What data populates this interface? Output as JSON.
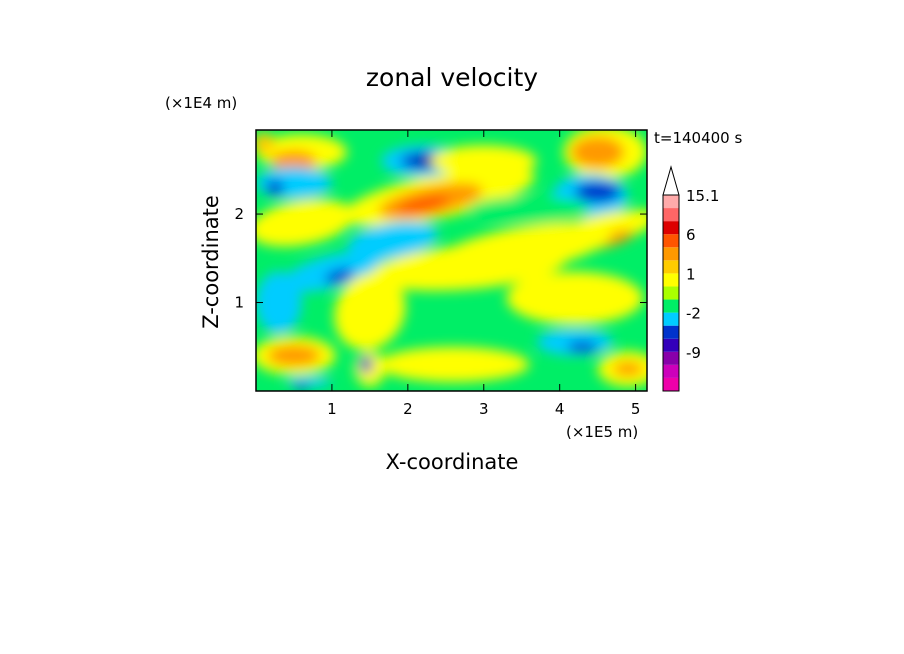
{
  "chart_data": {
    "type": "heatmap",
    "title": "zonal velocity",
    "xlabel": "X-coordinate",
    "ylabel": "Z-coordinate",
    "x_unit": "(×1E5 m)",
    "y_unit": "(×1E4 m)",
    "time_label": "t=140400 s",
    "xlim": [
      0,
      5.15
    ],
    "ylim": [
      0,
      2.95
    ],
    "x_ticks": [
      1,
      2,
      3,
      4,
      5
    ],
    "y_ticks": [
      1,
      2
    ],
    "x_tick_labels": [
      "1",
      "2",
      "3",
      "4",
      "5"
    ],
    "y_tick_labels": [
      "1",
      "2"
    ],
    "colorbar": {
      "levels": [
        -15,
        -12,
        -9,
        -6,
        -3,
        -2,
        -1,
        0,
        1,
        2,
        3,
        6,
        9,
        12,
        15.1
      ],
      "labels": [
        "15.1",
        "6",
        "1",
        "-2",
        "-9"
      ],
      "label_values": [
        15.1,
        6,
        1,
        -2,
        -9
      ],
      "colors": [
        "#ee00aa",
        "#cc00bb",
        "#8800aa",
        "#3300bb",
        "#0033cc",
        "#00ccff",
        "#00ee66",
        "#aaff00",
        "#ffff00",
        "#ffcc00",
        "#ff9900",
        "#ff5500",
        "#dd0000",
        "#ff6666",
        "#ffaaaa"
      ]
    },
    "grid": false
  }
}
